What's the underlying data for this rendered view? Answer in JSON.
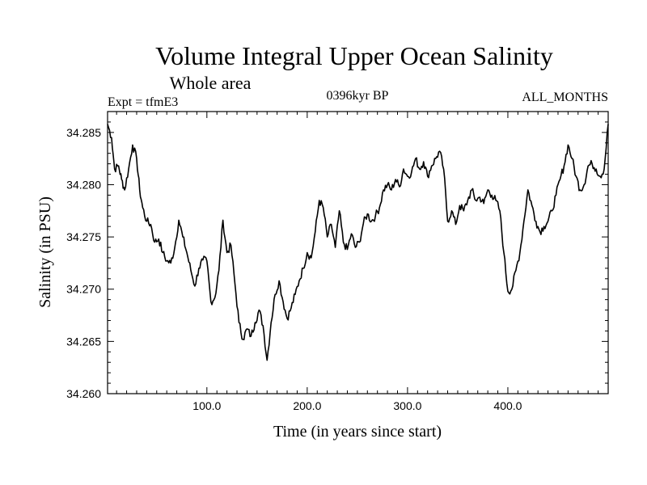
{
  "chart_data": {
    "type": "line",
    "title": "Volume Integral Upper Ocean Salinity",
    "subtitle": "Whole area",
    "annotations": {
      "left": "Expt = tfmE3",
      "center": "0396kyr BP",
      "right": "ALL_MONTHS"
    },
    "xlabel": "Time (in years since start)",
    "ylabel": "Salinity (in PSU)",
    "xlim": [
      1,
      500
    ],
    "ylim": [
      34.26,
      34.287
    ],
    "x_ticks": [
      100,
      200,
      300,
      400
    ],
    "x_tick_labels": [
      "100.0",
      "200.0",
      "300.0",
      "400.0"
    ],
    "y_ticks": [
      34.26,
      34.265,
      34.27,
      34.275,
      34.28,
      34.285
    ],
    "y_tick_labels": [
      "34.260",
      "34.265",
      "34.270",
      "34.275",
      "34.280",
      "34.285"
    ],
    "grid": false,
    "legend": "none",
    "color": "#000000",
    "series": [
      {
        "x": [
          1,
          5,
          8,
          12,
          15,
          18,
          22,
          26,
          30,
          33,
          36,
          40,
          44,
          48,
          52,
          56,
          60,
          64,
          68,
          72,
          76,
          80,
          84,
          88,
          92,
          96,
          100,
          104,
          108,
          112,
          116,
          120,
          124,
          128,
          132,
          136,
          140,
          144,
          148,
          152,
          156,
          160,
          164,
          168,
          172,
          176,
          180,
          184,
          188,
          192,
          196,
          200,
          204,
          208,
          212,
          216,
          220,
          224,
          228,
          232,
          236,
          240,
          244,
          248,
          252,
          256,
          260,
          264,
          268,
          272,
          276,
          280,
          284,
          288,
          292,
          296,
          300,
          304,
          308,
          312,
          316,
          320,
          324,
          328,
          332,
          336,
          340,
          344,
          348,
          352,
          356,
          360,
          364,
          368,
          372,
          376,
          380,
          384,
          388,
          392,
          396,
          400,
          404,
          408,
          412,
          416,
          420,
          424,
          428,
          432,
          436,
          440,
          444,
          448,
          452,
          456,
          460,
          464,
          468,
          472,
          476,
          480,
          484,
          488,
          492,
          496,
          500
        ],
        "values": [
          34.2858,
          34.2845,
          34.2815,
          34.2818,
          34.2805,
          34.2795,
          34.2815,
          34.2838,
          34.2825,
          34.2795,
          34.2778,
          34.2765,
          34.2762,
          34.2745,
          34.2748,
          34.2735,
          34.2727,
          34.2725,
          34.274,
          34.2766,
          34.275,
          34.2735,
          34.2718,
          34.2703,
          34.272,
          34.2728,
          34.2727,
          34.2688,
          34.2692,
          34.2718,
          34.2766,
          34.2735,
          34.2742,
          34.2705,
          34.2668,
          34.2652,
          34.2662,
          34.2655,
          34.2668,
          34.268,
          34.2665,
          34.2632,
          34.2668,
          34.2695,
          34.2708,
          34.2688,
          34.2672,
          34.2682,
          34.2695,
          34.2708,
          34.272,
          34.2735,
          34.273,
          34.2755,
          34.2785,
          34.2778,
          34.275,
          34.2762,
          34.274,
          34.2775,
          34.2745,
          34.2738,
          34.2753,
          34.274,
          34.2745,
          34.2763,
          34.2772,
          34.2765,
          34.277,
          34.2778,
          34.2795,
          34.28,
          34.2795,
          34.2805,
          34.2798,
          34.2815,
          34.2808,
          34.2812,
          34.2825,
          34.2815,
          34.2822,
          34.2808,
          34.2818,
          34.2825,
          34.2832,
          34.2815,
          34.2765,
          34.2775,
          34.2762,
          34.278,
          34.2775,
          34.2785,
          34.2795,
          34.2785,
          34.2788,
          34.2782,
          34.2795,
          34.279,
          34.2785,
          34.2775,
          34.2735,
          34.2698,
          34.27,
          34.2718,
          34.2735,
          34.2765,
          34.2795,
          34.278,
          34.2765,
          34.2755,
          34.276,
          34.2765,
          34.2775,
          34.279,
          34.2805,
          34.2818,
          34.2838,
          34.2825,
          34.2808,
          34.2795,
          34.28,
          34.2818,
          34.282,
          34.2815,
          34.2808,
          34.2815,
          34.2858
        ]
      }
    ]
  }
}
